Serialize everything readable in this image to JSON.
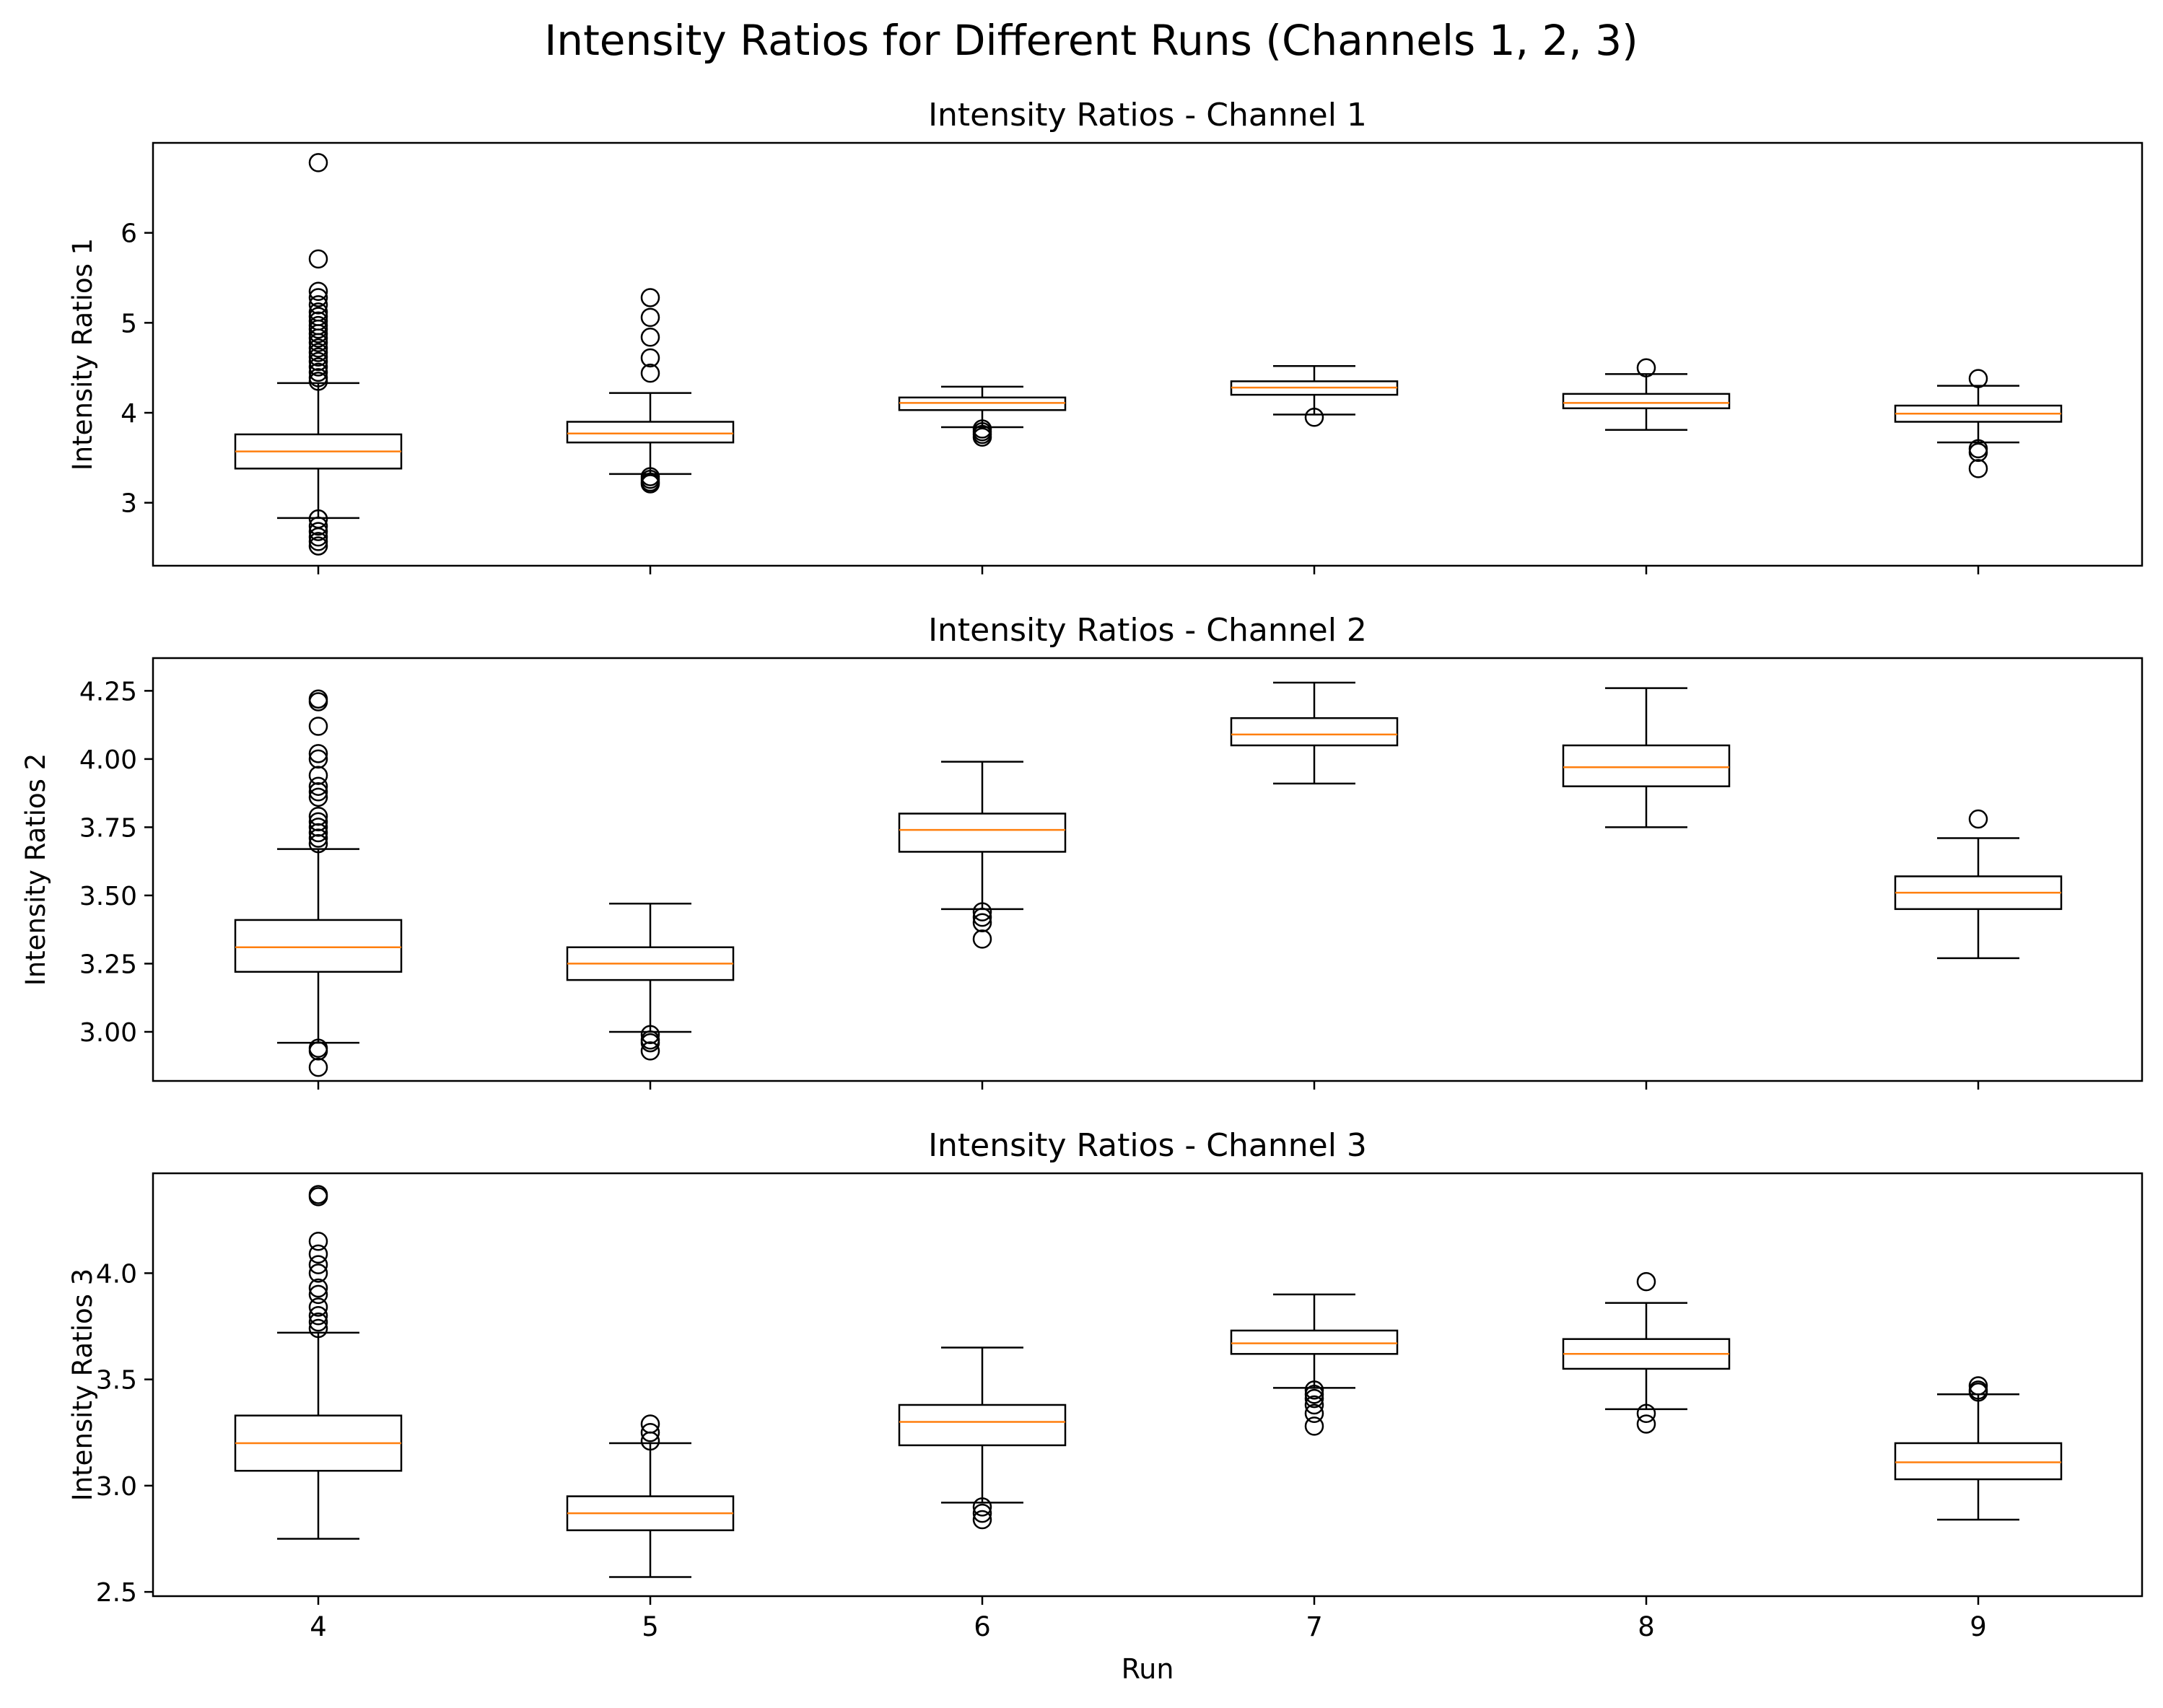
{
  "figure": {
    "suptitle": "Intensity Ratios for Different Runs (Channels 1, 2, 3)",
    "xlabel": "Run",
    "box_color": "#000000",
    "median_color": "#ff7f0e",
    "background": "#ffffff"
  },
  "chart_data": [
    {
      "type": "box",
      "title": "Intensity Ratios - Channel 1",
      "xlabel": "",
      "ylabel": "Intensity Ratios 1",
      "categories": [
        "4",
        "5",
        "6",
        "7",
        "8",
        "9"
      ],
      "ylim": [
        2.3,
        7.0
      ],
      "yticks": [
        3,
        4,
        5,
        6
      ],
      "ytick_labels": [
        "3",
        "4",
        "5",
        "6"
      ],
      "boxes": [
        {
          "whislo": 2.83,
          "q1": 3.38,
          "med": 3.57,
          "q3": 3.76,
          "whishi": 4.33,
          "fliers": [
            6.78,
            5.71,
            5.35,
            5.28,
            5.2,
            5.12,
            5.07,
            5.02,
            4.97,
            4.93,
            4.88,
            4.83,
            4.78,
            4.72,
            4.67,
            4.62,
            4.57,
            4.51,
            4.45,
            4.39,
            4.35,
            2.82,
            2.74,
            2.68,
            2.62,
            2.57,
            2.52
          ]
        },
        {
          "whislo": 3.32,
          "q1": 3.67,
          "med": 3.77,
          "q3": 3.9,
          "whishi": 4.22,
          "fliers": [
            5.28,
            5.06,
            4.84,
            4.61,
            4.44,
            3.29,
            3.26,
            3.23,
            3.21
          ]
        },
        {
          "whislo": 3.84,
          "q1": 4.03,
          "med": 4.11,
          "q3": 4.17,
          "whishi": 4.29,
          "fliers": [
            3.82,
            3.79,
            3.76,
            3.73
          ]
        },
        {
          "whislo": 3.98,
          "q1": 4.2,
          "med": 4.28,
          "q3": 4.35,
          "whishi": 4.52,
          "fliers": [
            3.95
          ]
        },
        {
          "whislo": 3.81,
          "q1": 4.05,
          "med": 4.11,
          "q3": 4.21,
          "whishi": 4.43,
          "fliers": [
            4.5
          ]
        },
        {
          "whislo": 3.67,
          "q1": 3.9,
          "med": 3.99,
          "q3": 4.08,
          "whishi": 4.3,
          "fliers": [
            4.38,
            3.6,
            3.56,
            3.38
          ]
        }
      ]
    },
    {
      "type": "box",
      "title": "Intensity Ratios - Channel 2",
      "xlabel": "",
      "ylabel": "Intensity Ratios 2",
      "categories": [
        "4",
        "5",
        "6",
        "7",
        "8",
        "9"
      ],
      "ylim": [
        2.82,
        4.37
      ],
      "yticks": [
        3.0,
        3.25,
        3.5,
        3.75,
        4.0,
        4.25
      ],
      "ytick_labels": [
        "3.00",
        "3.25",
        "3.50",
        "3.75",
        "4.00",
        "4.25"
      ],
      "boxes": [
        {
          "whislo": 2.96,
          "q1": 3.22,
          "med": 3.31,
          "q3": 3.41,
          "whishi": 3.67,
          "fliers": [
            4.22,
            4.21,
            4.12,
            4.02,
            4.0,
            3.94,
            3.9,
            3.88,
            3.86,
            3.79,
            3.77,
            3.75,
            3.73,
            3.71,
            3.69,
            2.94,
            2.93,
            2.87
          ]
        },
        {
          "whislo": 3.0,
          "q1": 3.19,
          "med": 3.25,
          "q3": 3.31,
          "whishi": 3.47,
          "fliers": [
            2.99,
            2.97,
            2.96,
            2.93
          ]
        },
        {
          "whislo": 3.45,
          "q1": 3.66,
          "med": 3.74,
          "q3": 3.8,
          "whishi": 3.99,
          "fliers": [
            3.44,
            3.42,
            3.4,
            3.34
          ]
        },
        {
          "whislo": 3.91,
          "q1": 4.05,
          "med": 4.09,
          "q3": 4.15,
          "whishi": 4.28,
          "fliers": []
        },
        {
          "whislo": 3.75,
          "q1": 3.9,
          "med": 3.97,
          "q3": 4.05,
          "whishi": 4.26,
          "fliers": []
        },
        {
          "whislo": 3.27,
          "q1": 3.45,
          "med": 3.51,
          "q3": 3.57,
          "whishi": 3.71,
          "fliers": [
            3.78
          ]
        }
      ]
    },
    {
      "type": "box",
      "title": "Intensity Ratios - Channel 3",
      "xlabel": "Run",
      "ylabel": "Intensity Ratios 3",
      "categories": [
        "4",
        "5",
        "6",
        "7",
        "8",
        "9"
      ],
      "ylim": [
        2.48,
        4.47
      ],
      "yticks": [
        2.5,
        3.0,
        3.5,
        4.0
      ],
      "ytick_labels": [
        "2.5",
        "3.0",
        "3.5",
        "4.0"
      ],
      "boxes": [
        {
          "whislo": 2.75,
          "q1": 3.07,
          "med": 3.2,
          "q3": 3.33,
          "whishi": 3.72,
          "fliers": [
            4.37,
            4.36,
            4.15,
            4.09,
            4.04,
            4.0,
            3.93,
            3.9,
            3.84,
            3.8,
            3.77,
            3.74
          ]
        },
        {
          "whislo": 2.57,
          "q1": 2.79,
          "med": 2.87,
          "q3": 2.95,
          "whishi": 3.2,
          "fliers": [
            3.29,
            3.25,
            3.21
          ]
        },
        {
          "whislo": 2.92,
          "q1": 3.19,
          "med": 3.3,
          "q3": 3.38,
          "whishi": 3.65,
          "fliers": [
            2.9,
            2.87,
            2.84
          ]
        },
        {
          "whislo": 3.46,
          "q1": 3.62,
          "med": 3.67,
          "q3": 3.73,
          "whishi": 3.9,
          "fliers": [
            3.45,
            3.43,
            3.41,
            3.38,
            3.34,
            3.28
          ]
        },
        {
          "whislo": 3.36,
          "q1": 3.55,
          "med": 3.62,
          "q3": 3.69,
          "whishi": 3.86,
          "fliers": [
            3.96,
            3.34,
            3.29
          ]
        },
        {
          "whislo": 2.84,
          "q1": 3.03,
          "med": 3.11,
          "q3": 3.2,
          "whishi": 3.43,
          "fliers": [
            3.47,
            3.45,
            3.44
          ]
        }
      ]
    }
  ]
}
